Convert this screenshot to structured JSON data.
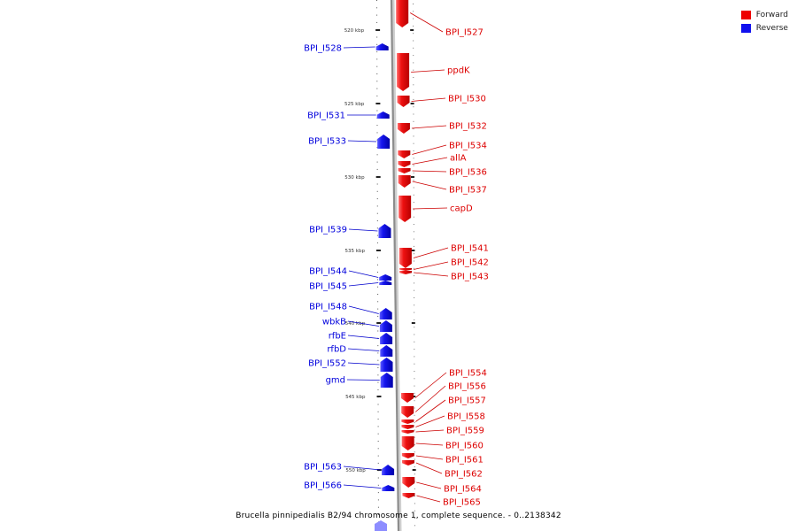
{
  "legend": [
    {
      "label": "Forward",
      "color": "#ee0000"
    },
    {
      "label": "Reverse",
      "color": "#1010ee"
    }
  ],
  "caption": "Brucella pinnipedialis B2/94 chromosome 1, complete sequence. - 0..2138342",
  "colors": {
    "forward": "#ee1111",
    "reverse": "#1515ee",
    "backbone": "#8c8c8c"
  },
  "ticks": [
    {
      "kbp": 520,
      "label": "520 kbp"
    },
    {
      "kbp": 525,
      "label": "525 kbp"
    },
    {
      "kbp": 530,
      "label": "530 kbp"
    },
    {
      "kbp": 535,
      "label": "535 kbp"
    },
    {
      "kbp": 540,
      "label": "540 kbp"
    },
    {
      "kbp": 545,
      "label": "545 kbp"
    },
    {
      "kbp": 550,
      "label": "550 kbp"
    }
  ],
  "genes": [
    {
      "name": "BPI_I527",
      "strand": "forward"
    },
    {
      "name": "BPI_I528",
      "strand": "reverse"
    },
    {
      "name": "ppdK",
      "strand": "forward"
    },
    {
      "name": "BPI_I530",
      "strand": "forward"
    },
    {
      "name": "BPI_I531",
      "strand": "reverse"
    },
    {
      "name": "BPI_I532",
      "strand": "forward"
    },
    {
      "name": "BPI_I533",
      "strand": "reverse"
    },
    {
      "name": "BPI_I534",
      "strand": "forward"
    },
    {
      "name": "allA",
      "strand": "forward"
    },
    {
      "name": "BPI_I536",
      "strand": "forward"
    },
    {
      "name": "BPI_I537",
      "strand": "forward"
    },
    {
      "name": "capD",
      "strand": "forward"
    },
    {
      "name": "BPI_I539",
      "strand": "reverse"
    },
    {
      "name": "BPI_I541",
      "strand": "forward"
    },
    {
      "name": "BPI_I542",
      "strand": "forward"
    },
    {
      "name": "BPI_I543",
      "strand": "forward"
    },
    {
      "name": "BPI_I544",
      "strand": "reverse"
    },
    {
      "name": "BPI_I545",
      "strand": "reverse"
    },
    {
      "name": "BPI_I548",
      "strand": "reverse"
    },
    {
      "name": "wbkB",
      "strand": "reverse"
    },
    {
      "name": "rfbE",
      "strand": "reverse"
    },
    {
      "name": "rfbD",
      "strand": "reverse"
    },
    {
      "name": "BPI_I552",
      "strand": "reverse"
    },
    {
      "name": "gmd",
      "strand": "reverse"
    },
    {
      "name": "BPI_I554",
      "strand": "forward"
    },
    {
      "name": "BPI_I556",
      "strand": "forward"
    },
    {
      "name": "BPI_I557",
      "strand": "forward"
    },
    {
      "name": "BPI_I558",
      "strand": "forward"
    },
    {
      "name": "BPI_I559",
      "strand": "forward"
    },
    {
      "name": "BPI_I560",
      "strand": "forward"
    },
    {
      "name": "BPI_I561",
      "strand": "forward"
    },
    {
      "name": "BPI_I562",
      "strand": "forward"
    },
    {
      "name": "BPI_I564",
      "strand": "forward"
    },
    {
      "name": "BPI_I565",
      "strand": "forward"
    },
    {
      "name": "BPI_I563",
      "strand": "reverse"
    },
    {
      "name": "BPI_I566",
      "strand": "reverse"
    }
  ]
}
